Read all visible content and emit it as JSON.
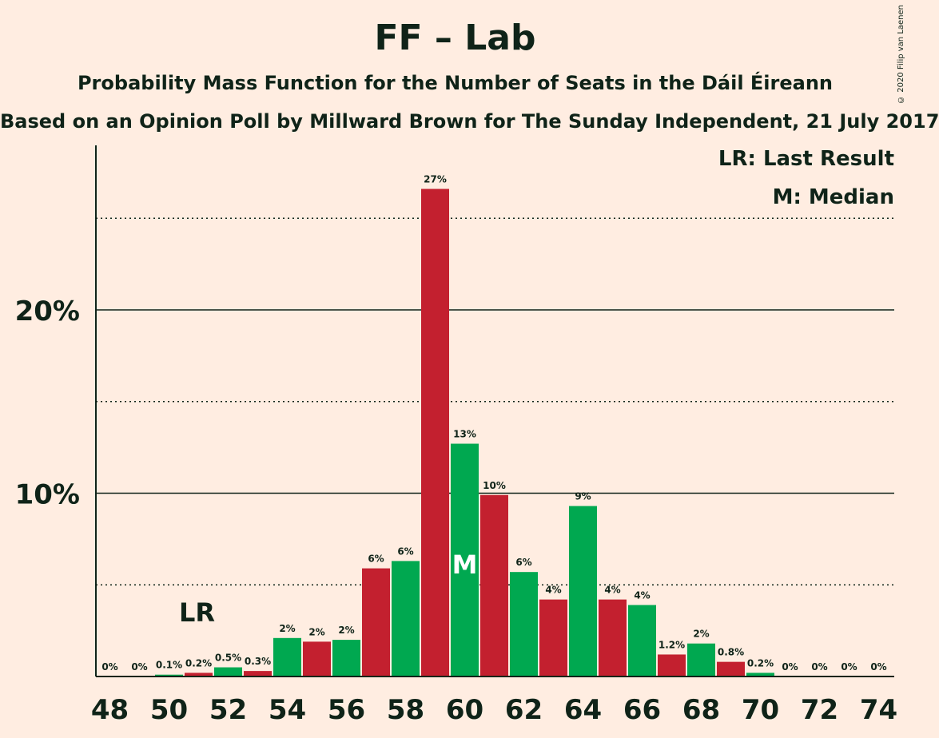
{
  "title": "FF – Lab",
  "subtitle": "Probability Mass Function for the Number of Seats in the Dáil Éireann",
  "source": "Based on an Opinion Poll by Millward Brown for The Sunday Independent, 21 July 2017",
  "copyright": "© 2020 Filip van Laenen",
  "legend": {
    "last_result": "LR: Last Result",
    "median": "M: Median"
  },
  "colors": {
    "background": "#FFEDE1",
    "red": "#C3202F",
    "green": "#00A850",
    "text": "#0F2318"
  },
  "chart_data": {
    "type": "bar",
    "x": [
      48,
      49,
      50,
      51,
      52,
      53,
      54,
      55,
      56,
      57,
      58,
      59,
      60,
      61,
      62,
      63,
      64,
      65,
      66,
      67,
      68,
      69,
      70,
      71,
      72,
      73,
      74
    ],
    "values": [
      0,
      0,
      0.1,
      0.2,
      0.5,
      0.3,
      2.1,
      1.9,
      2.0,
      5.9,
      6.3,
      26.6,
      12.7,
      9.9,
      5.7,
      4.2,
      9.3,
      4.2,
      3.9,
      1.2,
      1.8,
      0.8,
      0.2,
      0,
      0,
      0,
      0
    ],
    "labels": [
      "0%",
      "0%",
      "0.1%",
      "0.2%",
      "0.5%",
      "0.3%",
      "2%",
      "2%",
      "2%",
      "6%",
      "6%",
      "27%",
      "13%",
      "10%",
      "6%",
      "4%",
      "9%",
      "4%",
      "4%",
      "1.2%",
      "2%",
      "0.8%",
      "0.2%",
      "0%",
      "0%",
      "0%",
      "0%"
    ],
    "x_tick_labels": [
      "48",
      "50",
      "52",
      "54",
      "56",
      "58",
      "60",
      "62",
      "64",
      "66",
      "68",
      "70",
      "72",
      "74"
    ],
    "y_tick_labels": [
      "10%",
      "20%"
    ],
    "ylim": [
      0,
      29
    ],
    "major_gridlines": [
      10,
      20
    ],
    "minor_gridlines": [
      5,
      15,
      25
    ],
    "last_result_seat": 51,
    "last_result_marker": "LR",
    "median_seat": 60,
    "median_marker": "M",
    "legend_position": "top-right"
  }
}
